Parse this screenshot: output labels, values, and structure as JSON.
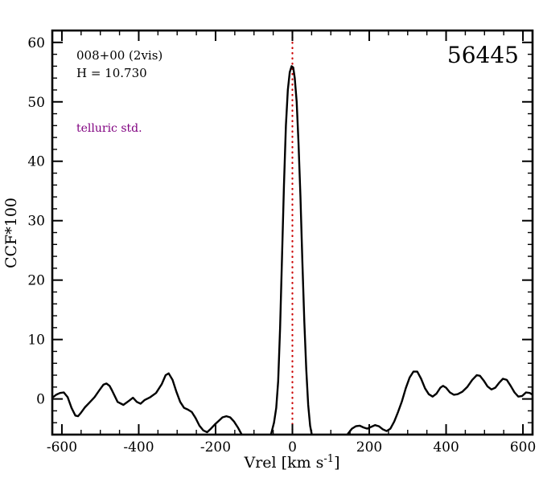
{
  "annotations": {
    "field_id": "008+00 (2vis)",
    "magnitude": "H = 10.730",
    "note": "telluric std.",
    "plot_id": "56445"
  },
  "colors": {
    "line": "#000000",
    "vline": "#cc0000",
    "note_text": "#800080",
    "frame": "#000000"
  },
  "chart_data": {
    "type": "line",
    "title": "56445",
    "xlabel": "Vrel [km s^-1]",
    "xlabel_parts": {
      "main": "Vrel [km s",
      "sup": "-1",
      "end": "]"
    },
    "ylabel": "CCF*100",
    "xlim": [
      -625,
      625
    ],
    "ylim": [
      -6,
      62
    ],
    "x_ticks": [
      -600,
      -400,
      -200,
      0,
      200,
      400,
      600
    ],
    "y_ticks": [
      0,
      10,
      20,
      30,
      40,
      50,
      60
    ],
    "x_minor_step": 50,
    "y_minor_step": 2,
    "grid": false,
    "legend": "none",
    "vline_x": 0,
    "vline_style": "dotted-red",
    "series": [
      {
        "name": "CCF",
        "points": [
          [
            -625,
            0.2
          ],
          [
            -615,
            0.7
          ],
          [
            -605,
            1.0
          ],
          [
            -595,
            1.1
          ],
          [
            -585,
            0.3
          ],
          [
            -575,
            -1.5
          ],
          [
            -565,
            -2.8
          ],
          [
            -558,
            -2.9
          ],
          [
            -550,
            -2.3
          ],
          [
            -540,
            -1.4
          ],
          [
            -528,
            -0.6
          ],
          [
            -515,
            0.3
          ],
          [
            -502,
            1.5
          ],
          [
            -492,
            2.4
          ],
          [
            -484,
            2.6
          ],
          [
            -476,
            2.2
          ],
          [
            -470,
            1.5
          ],
          [
            -455,
            -0.5
          ],
          [
            -440,
            -1.0
          ],
          [
            -425,
            -0.3
          ],
          [
            -415,
            0.2
          ],
          [
            -405,
            -0.5
          ],
          [
            -395,
            -0.8
          ],
          [
            -385,
            -0.2
          ],
          [
            -370,
            0.3
          ],
          [
            -355,
            1.0
          ],
          [
            -340,
            2.5
          ],
          [
            -330,
            4.0
          ],
          [
            -322,
            4.3
          ],
          [
            -312,
            3.2
          ],
          [
            -302,
            1.2
          ],
          [
            -292,
            -0.5
          ],
          [
            -282,
            -1.5
          ],
          [
            -272,
            -1.8
          ],
          [
            -262,
            -2.2
          ],
          [
            -252,
            -3.2
          ],
          [
            -242,
            -4.5
          ],
          [
            -232,
            -5.3
          ],
          [
            -222,
            -5.6
          ],
          [
            -212,
            -5.0
          ],
          [
            -202,
            -4.3
          ],
          [
            -192,
            -3.7
          ],
          [
            -182,
            -3.1
          ],
          [
            -172,
            -2.9
          ],
          [
            -162,
            -3.1
          ],
          [
            -152,
            -3.8
          ],
          [
            -142,
            -4.8
          ],
          [
            -132,
            -6.0
          ],
          [
            -120,
            -7.5
          ],
          [
            -100,
            -8.5
          ],
          [
            -80,
            -8.0
          ],
          [
            -65,
            -7.0
          ],
          [
            -55,
            -5.8
          ],
          [
            -48,
            -4.0
          ],
          [
            -42,
            -1.5
          ],
          [
            -37,
            3
          ],
          [
            -32,
            12
          ],
          [
            -27,
            24
          ],
          [
            -22,
            36
          ],
          [
            -17,
            46
          ],
          [
            -12,
            52
          ],
          [
            -7,
            55
          ],
          [
            -2,
            56
          ],
          [
            2,
            55.8
          ],
          [
            6,
            54
          ],
          [
            11,
            50
          ],
          [
            16,
            43
          ],
          [
            21,
            34
          ],
          [
            26,
            23
          ],
          [
            31,
            13
          ],
          [
            36,
            5
          ],
          [
            41,
            -1
          ],
          [
            46,
            -4.5
          ],
          [
            52,
            -6.5
          ],
          [
            60,
            -8
          ],
          [
            80,
            -9.5
          ],
          [
            100,
            -10
          ],
          [
            120,
            -9
          ],
          [
            135,
            -7
          ],
          [
            145,
            -5.8
          ],
          [
            155,
            -5.0
          ],
          [
            165,
            -4.6
          ],
          [
            175,
            -4.5
          ],
          [
            185,
            -4.8
          ],
          [
            195,
            -5.0
          ],
          [
            205,
            -4.7
          ],
          [
            215,
            -4.4
          ],
          [
            225,
            -4.6
          ],
          [
            235,
            -5.1
          ],
          [
            245,
            -5.4
          ],
          [
            255,
            -5.0
          ],
          [
            265,
            -3.8
          ],
          [
            275,
            -2.2
          ],
          [
            285,
            -0.4
          ],
          [
            295,
            1.8
          ],
          [
            305,
            3.6
          ],
          [
            315,
            4.6
          ],
          [
            325,
            4.6
          ],
          [
            335,
            3.4
          ],
          [
            345,
            1.8
          ],
          [
            355,
            0.8
          ],
          [
            365,
            0.4
          ],
          [
            375,
            0.9
          ],
          [
            385,
            1.9
          ],
          [
            392,
            2.2
          ],
          [
            400,
            1.9
          ],
          [
            410,
            1.1
          ],
          [
            420,
            0.7
          ],
          [
            430,
            0.8
          ],
          [
            442,
            1.2
          ],
          [
            455,
            2.0
          ],
          [
            468,
            3.2
          ],
          [
            480,
            4.0
          ],
          [
            488,
            3.9
          ],
          [
            498,
            3.1
          ],
          [
            508,
            2.1
          ],
          [
            518,
            1.6
          ],
          [
            528,
            1.9
          ],
          [
            538,
            2.7
          ],
          [
            548,
            3.4
          ],
          [
            558,
            3.2
          ],
          [
            568,
            2.2
          ],
          [
            578,
            1.1
          ],
          [
            588,
            0.4
          ],
          [
            598,
            0.5
          ],
          [
            608,
            1.1
          ],
          [
            618,
            1.0
          ],
          [
            625,
            0.7
          ]
        ]
      }
    ]
  }
}
